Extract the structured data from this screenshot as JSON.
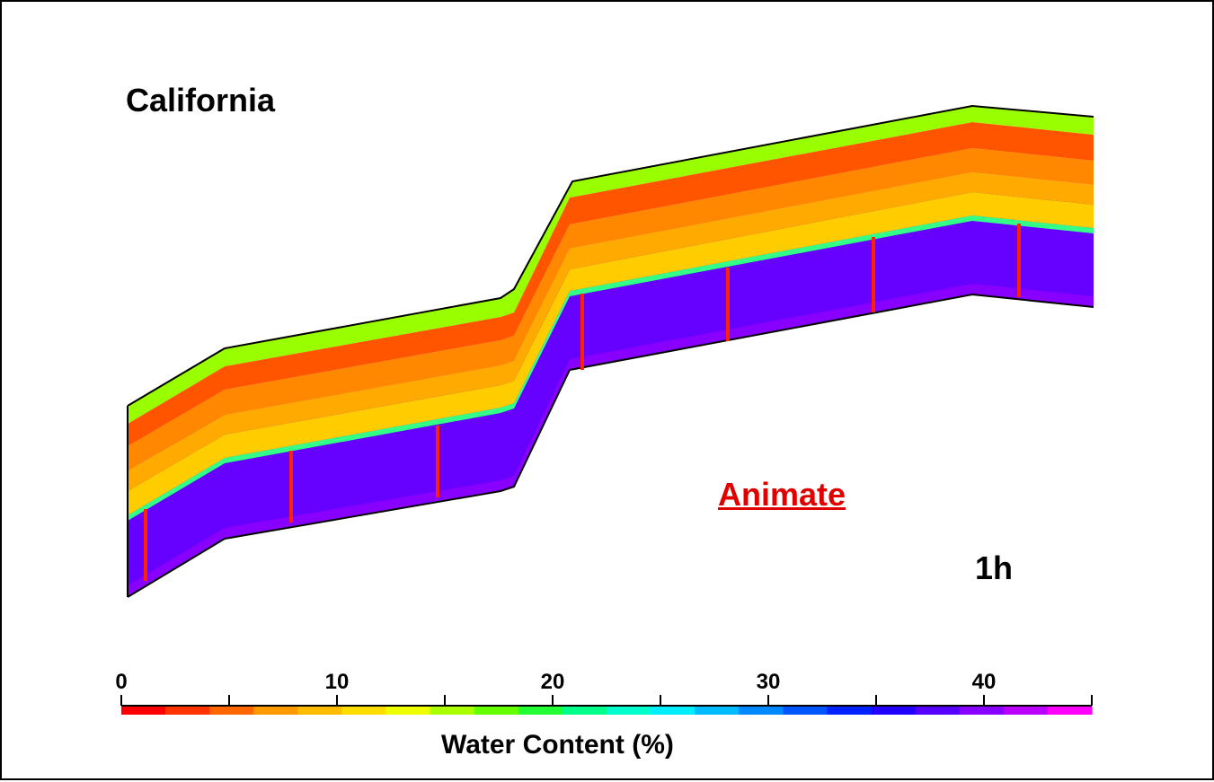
{
  "title": "California",
  "animate_label": "Animate",
  "time_label": "1h",
  "colorbar": {
    "title": "Water Content (%)",
    "min": 0,
    "max": 45,
    "ticks": [
      0,
      5,
      10,
      15,
      20,
      25,
      30,
      35,
      40,
      45
    ],
    "labeled_ticks": [
      "0",
      "10",
      "20",
      "30",
      "40"
    ],
    "labeled_values": [
      0,
      10,
      20,
      30,
      40
    ],
    "colors": [
      "#ff0000",
      "#ff3300",
      "#ff6600",
      "#ff9900",
      "#ffbb00",
      "#ffdd00",
      "#eeff00",
      "#aaff00",
      "#66ff00",
      "#22ff33",
      "#00ff88",
      "#00ffcc",
      "#00eeff",
      "#00bbff",
      "#0088ff",
      "#0055ff",
      "#0022ff",
      "#2200ff",
      "#5500ff",
      "#8800ff",
      "#bb00ff",
      "#ff00ff"
    ]
  },
  "layer_colors": {
    "surface": "#99ff00",
    "wet_top": "#ff5500",
    "wet_mid": "#ff8800",
    "wet_low": "#ffaa00",
    "wet_lowest": "#ffcc00",
    "front": "#33ff88",
    "dry": "#6600ff",
    "dry_bottom": "#8800ff",
    "probe": "#ff2200"
  }
}
